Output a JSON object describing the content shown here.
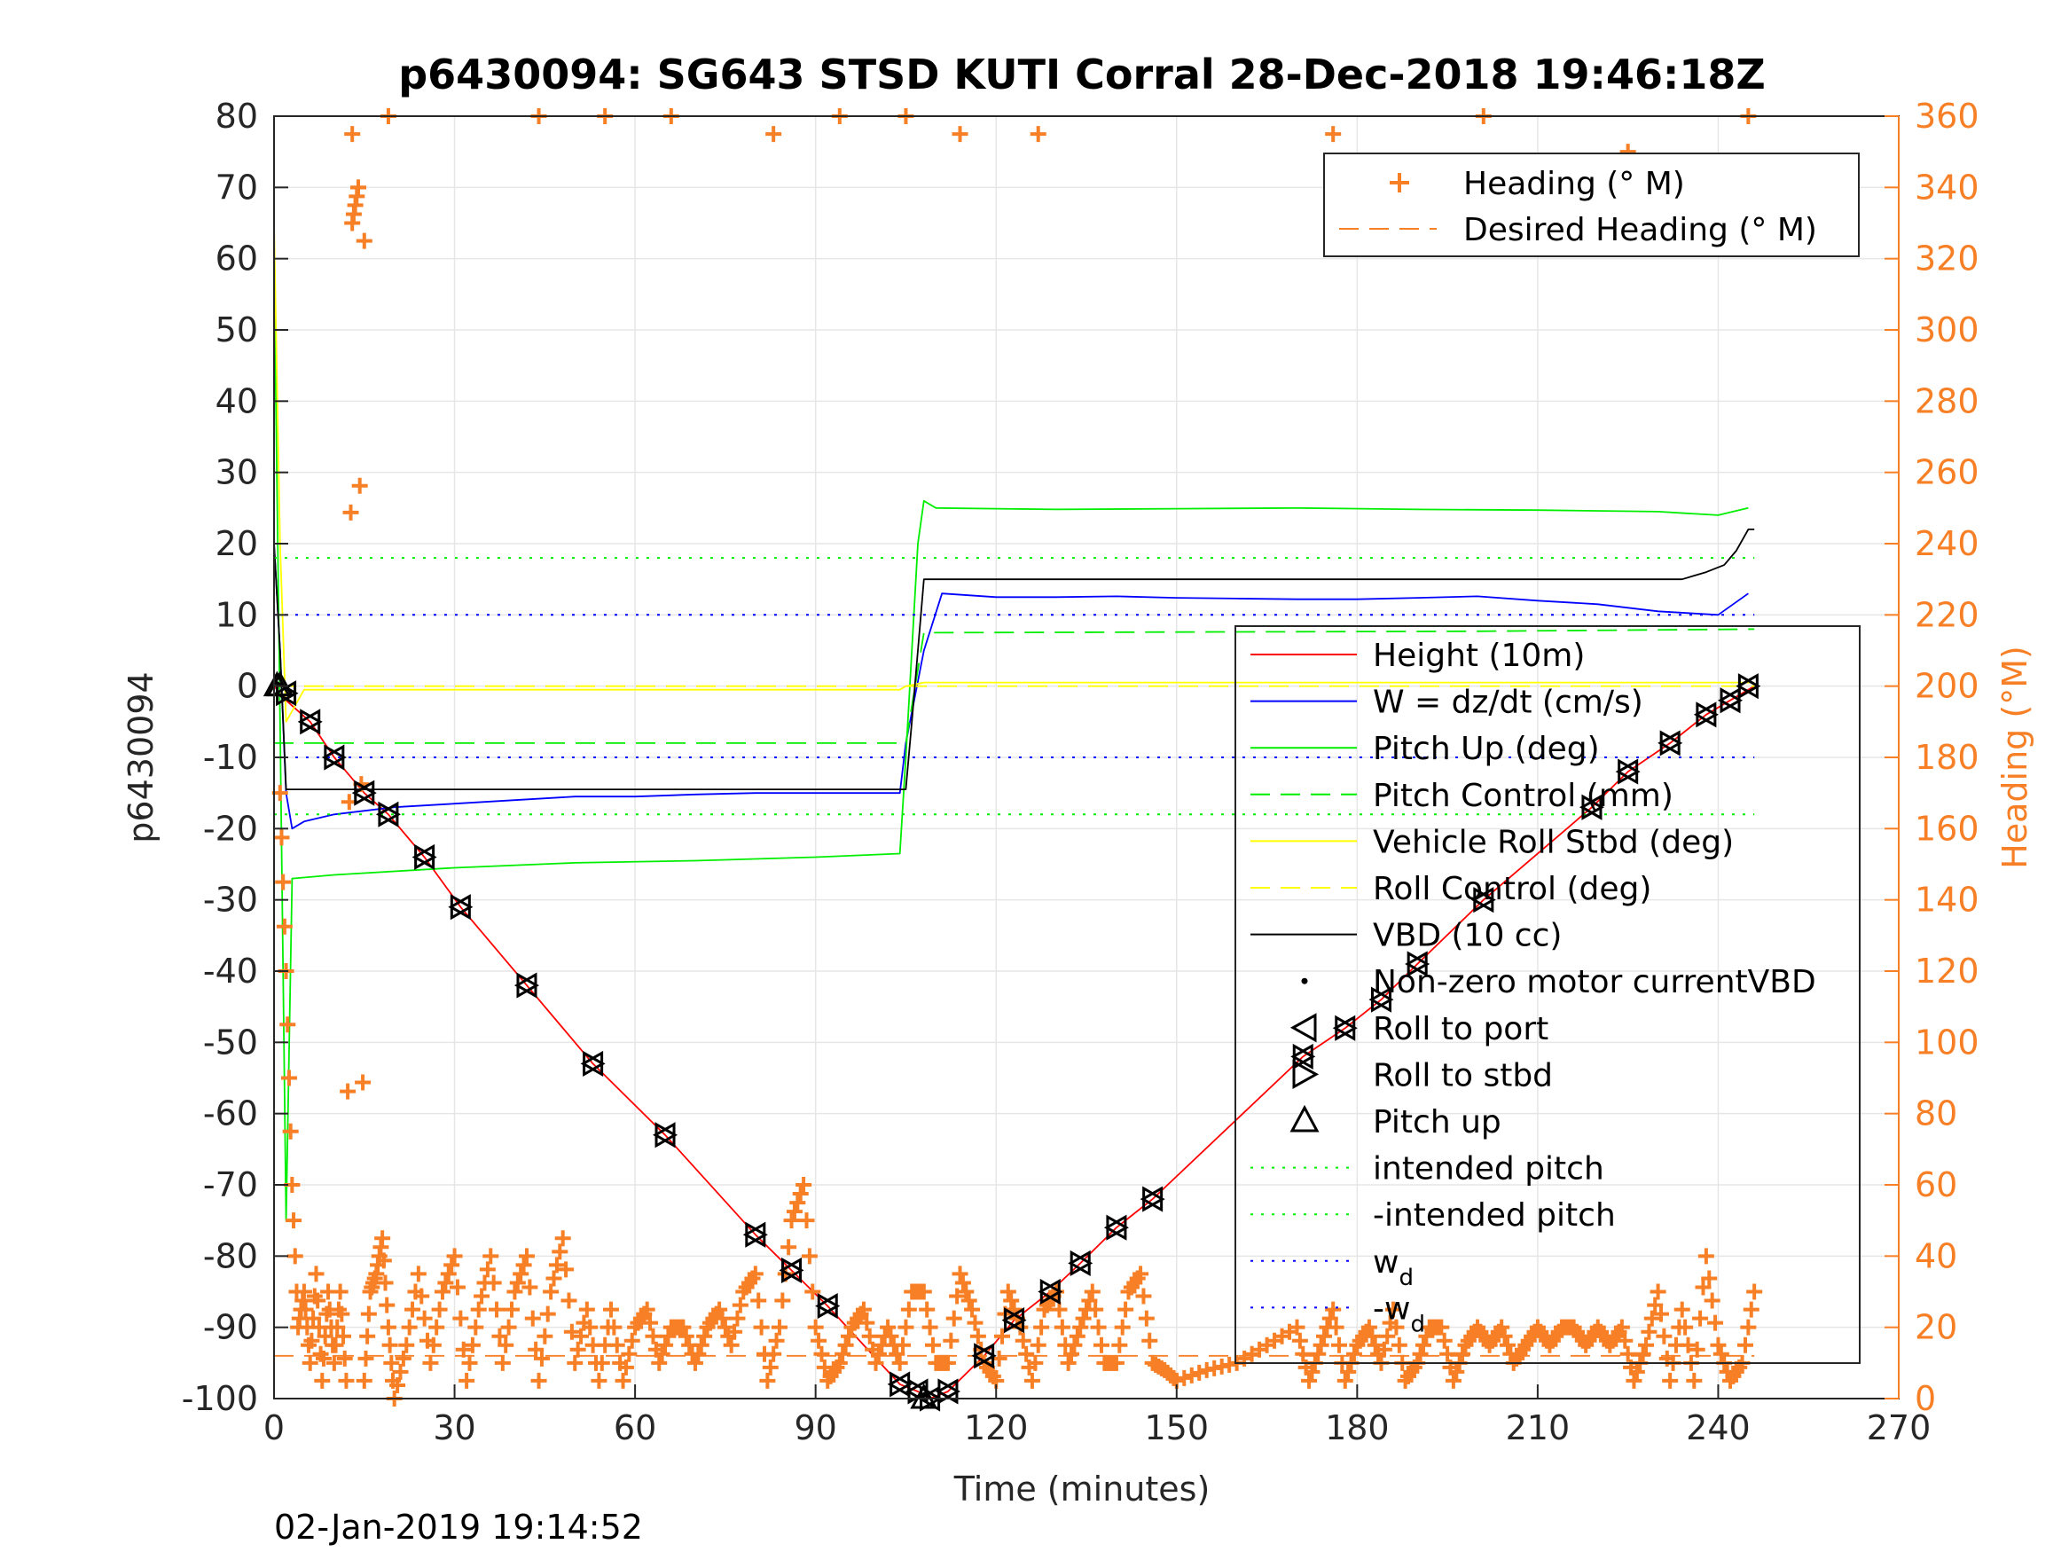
{
  "chart_data": {
    "type": "line",
    "title": "p6430094: SG643 STSD KUTI Corral 28-Dec-2018 19:46:18Z",
    "xlabel": "Time (minutes)",
    "ylabel_left": "p6430094",
    "ylabel_right": "Heading (°M)",
    "xlim": [
      0,
      270
    ],
    "ylim_left": [
      -100,
      80
    ],
    "ylim_right": [
      0,
      360
    ],
    "xticks": [
      "0",
      "30",
      "60",
      "90",
      "120",
      "150",
      "180",
      "210",
      "240",
      "270"
    ],
    "yticks_left": [
      "80",
      "70",
      "60",
      "50",
      "40",
      "30",
      "20",
      "10",
      "0",
      "-10",
      "-20",
      "-30",
      "-40",
      "-50",
      "-60",
      "-70",
      "-80",
      "-90",
      "-100"
    ],
    "yticks_right": [
      "360",
      "340",
      "320",
      "300",
      "280",
      "260",
      "240",
      "220",
      "200",
      "180",
      "160",
      "140",
      "120",
      "100",
      "80",
      "60",
      "40",
      "20",
      "0"
    ],
    "grid": true,
    "footer": "02-Jan-2019 19:14:52",
    "colors": {
      "height": "#ff0000",
      "w": "#0000ff",
      "pitch": "#00ee00",
      "roll": "#ffff00",
      "vbd": "#000000",
      "heading": "#f77f26",
      "grid": "#e6e6e6"
    },
    "legend_heading": {
      "position": "top-right",
      "entries": [
        "Heading (° M)",
        "Desired Heading (° M)"
      ]
    },
    "legend_main": {
      "position": "right",
      "entries": [
        "Height (10m)",
        "W = dz/dt (cm/s)",
        "Pitch Up (deg)",
        "Pitch Control (mm)",
        "Vehicle Roll Stbd (deg)",
        "Roll Control (deg)",
        "VBD (10 cc)",
        "Non-zero motor currentVBD",
        "Roll to port",
        "Roll to stbd",
        "Pitch up",
        "intended pitch",
        "-intended pitch",
        "w",
        "-w"
      ],
      "subscript": "d"
    },
    "series": [
      {
        "name": "Height (10m)",
        "axis": "left",
        "x": [
          0,
          1,
          2,
          6,
          10,
          15,
          19,
          25,
          31,
          42,
          53,
          65,
          80,
          86,
          92,
          104,
          107,
          109,
          112,
          118,
          123,
          129,
          134,
          140,
          146,
          171,
          178,
          184,
          190,
          201,
          219,
          225,
          232,
          238,
          242,
          246
        ],
        "y": [
          0,
          -1,
          -2,
          -5,
          -10,
          -15,
          -18,
          -24,
          -31,
          -42,
          -53,
          -63,
          -77,
          -82,
          -87,
          -98,
          -99,
          -100,
          -99,
          -94,
          -89,
          -85,
          -81,
          -76,
          -72,
          -52,
          -48,
          -44,
          -39,
          -30,
          -17,
          -12,
          -8,
          -4,
          -2,
          0
        ]
      },
      {
        "name": "W = dz/dt (cm/s)",
        "axis": "left",
        "x": [
          0,
          1,
          2,
          3,
          5,
          10,
          20,
          30,
          40,
          50,
          60,
          70,
          80,
          90,
          100,
          104,
          105,
          108,
          111,
          120,
          130,
          140,
          150,
          160,
          170,
          180,
          190,
          200,
          210,
          220,
          230,
          240,
          245
        ],
        "y": [
          20,
          5,
          -15,
          -20,
          -19,
          -18,
          -17,
          -16.5,
          -16,
          -15.5,
          -15.5,
          -15.2,
          -15,
          -15,
          -15,
          -15,
          -8,
          5,
          13,
          12.5,
          12.5,
          12.6,
          12.4,
          12.3,
          12.2,
          12.2,
          12.4,
          12.6,
          12,
          11.5,
          10.5,
          10,
          13
        ]
      },
      {
        "name": "Pitch Up (deg)",
        "axis": "left",
        "x": [
          0,
          1,
          2,
          3,
          10,
          30,
          50,
          70,
          90,
          104,
          105,
          107,
          108,
          110,
          130,
          150,
          170,
          190,
          210,
          230,
          240,
          245
        ],
        "y": [
          60,
          -5,
          -75,
          -27,
          -26.5,
          -25.5,
          -24.8,
          -24.5,
          -24,
          -23.5,
          -10,
          20,
          26,
          25,
          24.8,
          24.9,
          25,
          24.8,
          24.7,
          24.5,
          24,
          25
        ]
      },
      {
        "name": "Pitch Control (mm)",
        "axis": "left",
        "x": [
          0,
          12,
          105,
          108,
          200,
          246
        ],
        "y": [
          -8,
          -8,
          -8,
          7.5,
          7.7,
          8
        ]
      },
      {
        "name": "Vehicle Roll Stbd (deg)",
        "axis": "left",
        "x": [
          0,
          1,
          2,
          5,
          10,
          30,
          60,
          90,
          104,
          105,
          108,
          130,
          160,
          190,
          220,
          246
        ],
        "y": [
          65,
          20,
          -5,
          -0.5,
          -0.5,
          -0.5,
          -0.5,
          -0.5,
          -0.5,
          0,
          0.5,
          0.5,
          0.5,
          0.5,
          0.5,
          0.5
        ]
      },
      {
        "name": "Roll Control (deg)",
        "axis": "left",
        "x": [
          0,
          246
        ],
        "y": [
          0,
          0
        ]
      },
      {
        "name": "VBD (10 cc)",
        "axis": "left",
        "x": [
          0,
          1,
          2,
          105,
          106,
          108,
          234,
          236,
          238,
          241,
          243,
          245,
          246
        ],
        "y": [
          20,
          5,
          -14.5,
          -14.5,
          -5,
          15,
          15,
          15.5,
          16,
          17,
          19,
          22,
          22
        ]
      },
      {
        "name": "intended pitch",
        "axis": "left",
        "x": [
          0,
          246
        ],
        "y": [
          18,
          18
        ]
      },
      {
        "name": "-intended pitch",
        "axis": "left",
        "x": [
          0,
          246
        ],
        "y": [
          -18,
          -18
        ]
      },
      {
        "name": "w_d",
        "axis": "left",
        "x": [
          0,
          246
        ],
        "y": [
          10,
          10
        ]
      },
      {
        "name": "-w_d",
        "axis": "left",
        "x": [
          0,
          246
        ],
        "y": [
          -10,
          -10
        ]
      },
      {
        "name": "Heading (° M)",
        "axis": "right",
        "x": [
          1,
          2,
          3,
          4,
          5,
          6,
          7,
          8,
          9,
          10,
          11,
          12,
          13,
          14,
          15,
          16,
          17,
          18,
          19,
          20,
          22,
          24,
          26,
          28,
          30,
          32,
          34,
          36,
          38,
          40,
          42,
          44,
          46,
          48,
          50,
          52,
          54,
          56,
          58,
          60,
          62,
          64,
          66,
          68,
          70,
          72,
          74,
          76,
          78,
          80,
          82,
          84,
          86,
          88,
          90,
          92,
          94,
          96,
          98,
          100,
          102,
          104,
          106,
          108,
          110,
          112,
          114,
          116,
          118,
          120,
          122,
          124,
          126,
          128,
          130,
          132,
          134,
          136,
          138,
          140,
          142,
          144,
          146,
          148,
          150,
          155,
          160,
          165,
          170,
          172,
          174,
          176,
          178,
          180,
          182,
          184,
          186,
          188,
          190,
          192,
          194,
          196,
          198,
          200,
          202,
          204,
          206,
          208,
          210,
          212,
          214,
          216,
          218,
          220,
          222,
          224,
          226,
          228,
          230,
          232,
          234,
          236,
          238,
          240,
          242,
          244,
          246
        ],
        "y": [
          170,
          120,
          60,
          20,
          30,
          10,
          35,
          5,
          30,
          10,
          30,
          5,
          330,
          340,
          5,
          30,
          35,
          45,
          20,
          0,
          15,
          35,
          10,
          30,
          40,
          5,
          25,
          40,
          10,
          30,
          40,
          5,
          30,
          45,
          10,
          25,
          5,
          25,
          5,
          20,
          25,
          10,
          20,
          20,
          10,
          20,
          25,
          15,
          30,
          35,
          5,
          20,
          50,
          60,
          20,
          5,
          10,
          20,
          25,
          10,
          20,
          10,
          30,
          30,
          10,
          10,
          35,
          25,
          10,
          5,
          30,
          20,
          5,
          25,
          30,
          10,
          20,
          30,
          10,
          10,
          30,
          35,
          10,
          8,
          5,
          8,
          10,
          15,
          20,
          5,
          15,
          25,
          5,
          15,
          20,
          10,
          25,
          5,
          10,
          20,
          20,
          5,
          15,
          20,
          15,
          20,
          10,
          15,
          20,
          15,
          20,
          20,
          15,
          20,
          15,
          20,
          5,
          15,
          30,
          5,
          25,
          5,
          40,
          15,
          5,
          10,
          30
        ]
      },
      {
        "name": "Heading wrap",
        "axis": "right",
        "x": [
          13,
          14,
          15,
          19,
          44,
          55,
          66,
          83,
          94,
          105,
          114,
          127,
          176,
          186,
          201,
          225,
          245
        ],
        "y": [
          355,
          340,
          325,
          360,
          360,
          360,
          360,
          355,
          360,
          360,
          355,
          355,
          355,
          345,
          360,
          350,
          360
        ]
      },
      {
        "name": "Desired Heading (° M)",
        "axis": "right",
        "x": [
          0,
          246
        ],
        "y": [
          12,
          12
        ]
      },
      {
        "name": "Roll to port / stbd markers",
        "axis": "left",
        "x": [
          2,
          6,
          10,
          15,
          19,
          25,
          31,
          42,
          53,
          65,
          80,
          86,
          92,
          104,
          107,
          109,
          112,
          118,
          123,
          129,
          134,
          140,
          146,
          171,
          178,
          184,
          190,
          201,
          219,
          225,
          232,
          238,
          242,
          245
        ],
        "y": [
          -1,
          -5,
          -10,
          -15,
          -18,
          -24,
          -31,
          -42,
          -53,
          -63,
          -77,
          -82,
          -87,
          -98,
          -99,
          -100,
          -99,
          -94,
          -89,
          -85,
          -81,
          -76,
          -72,
          -52,
          -48,
          -44,
          -39,
          -30,
          -17,
          -12,
          -8,
          -4,
          -2,
          0
        ]
      },
      {
        "name": "Pitch up markers",
        "axis": "left",
        "x": [
          0.5,
          1,
          108
        ],
        "y": [
          0,
          0,
          -100
        ]
      }
    ]
  }
}
